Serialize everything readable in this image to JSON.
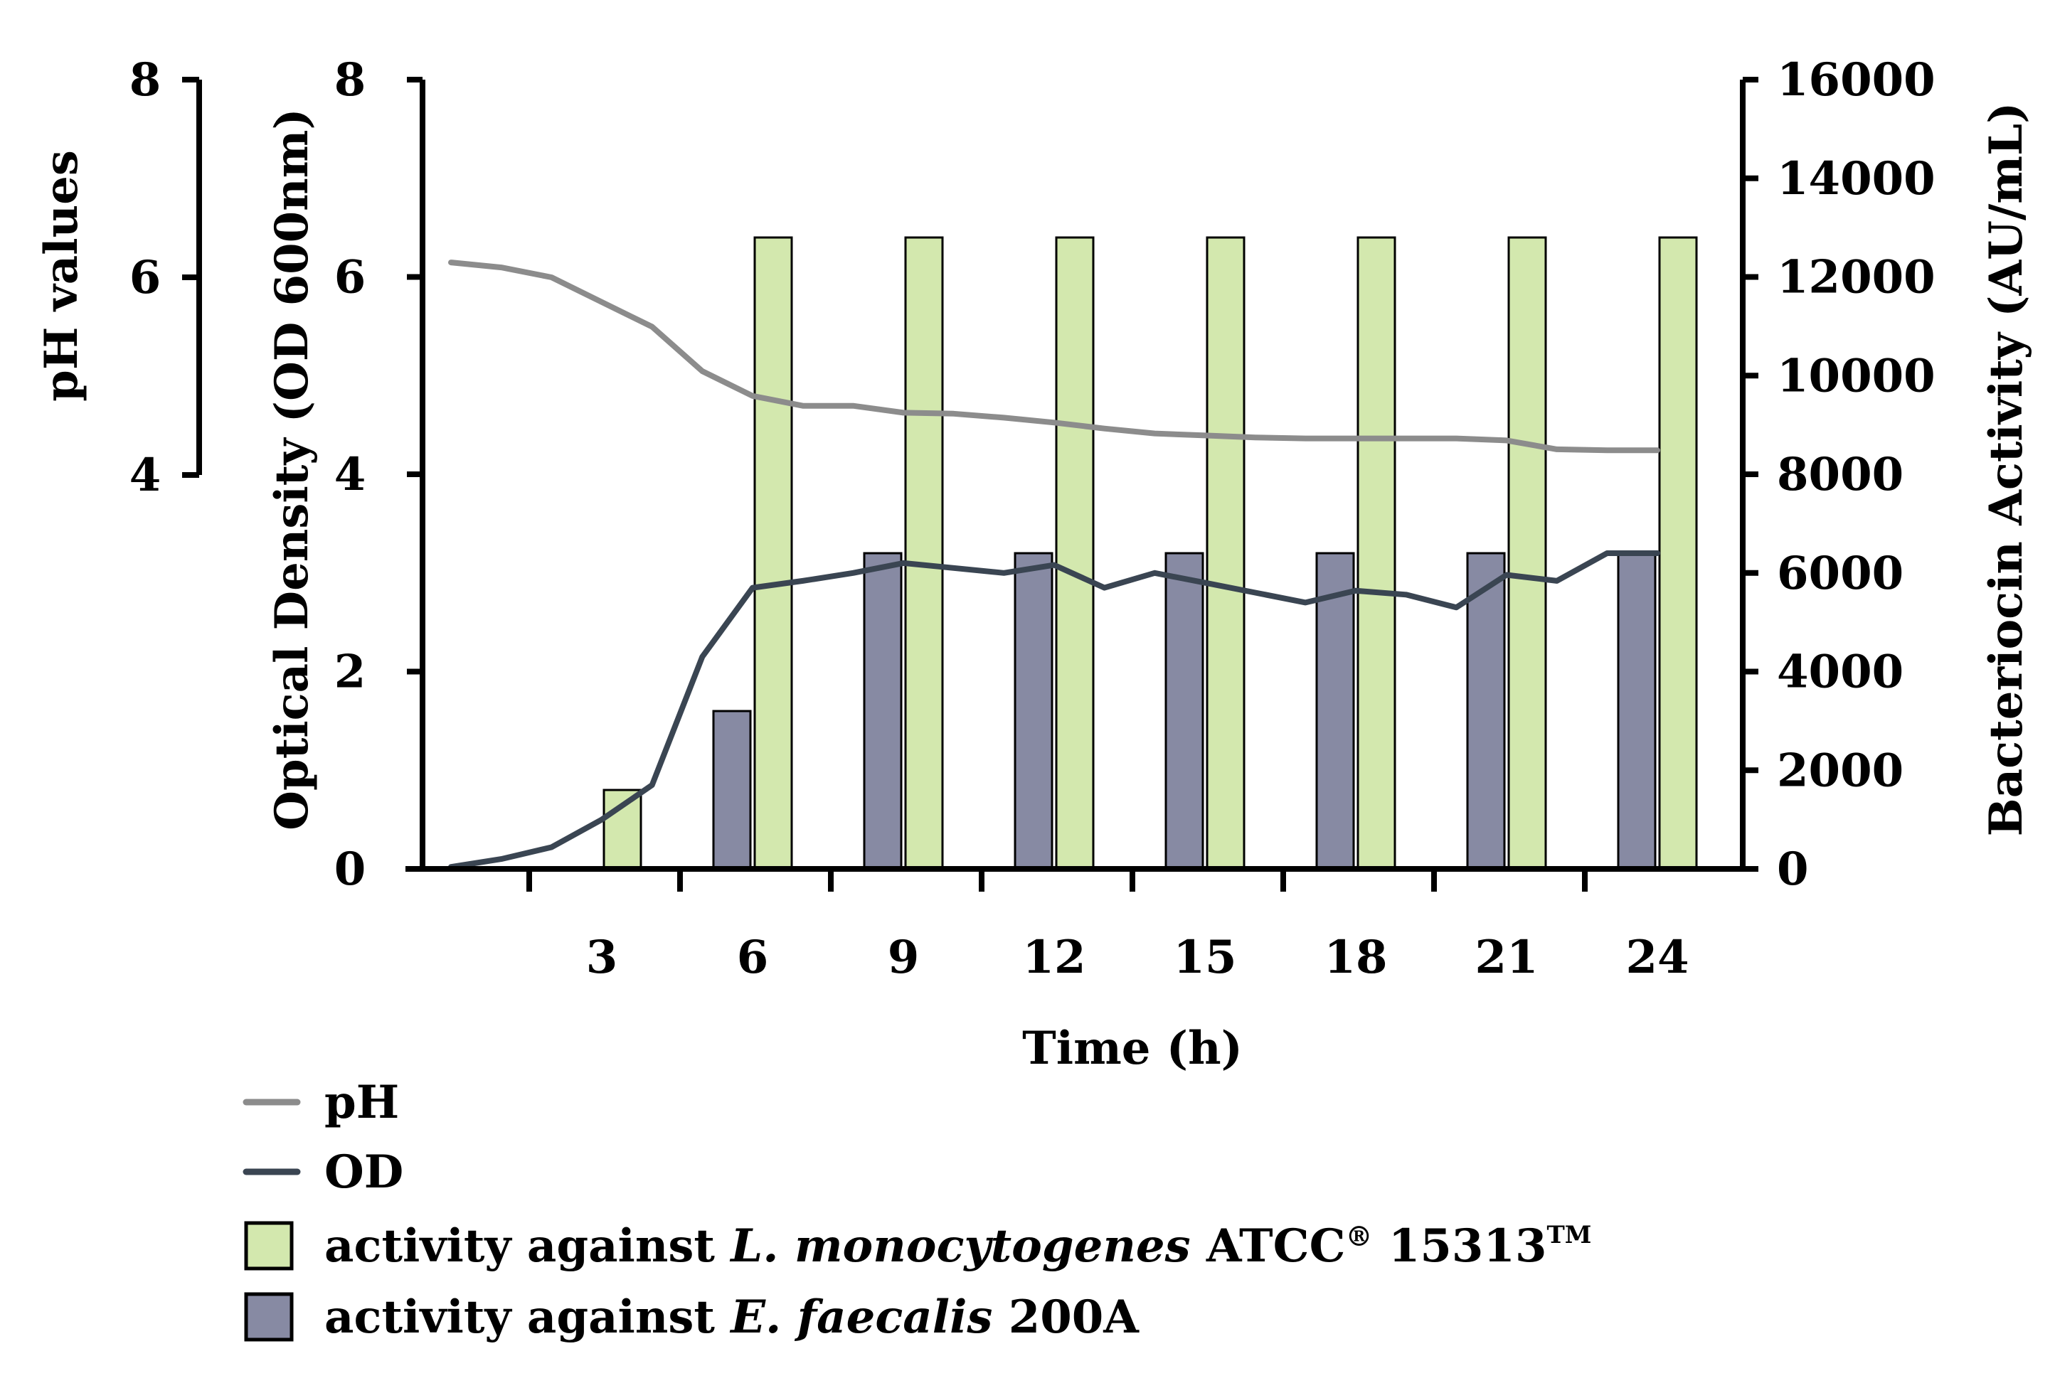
{
  "chart_data": {
    "type": "bar",
    "xlabel": "Time (h)",
    "x_ticks": [
      3,
      6,
      9,
      12,
      15,
      18,
      21,
      24
    ],
    "axes": {
      "ph": {
        "label": "pH values",
        "range": [
          4,
          8
        ],
        "ticks": [
          4,
          6,
          8
        ]
      },
      "od": {
        "label": "Optical Density (OD 600nm)",
        "range": [
          0,
          8
        ],
        "ticks": [
          0,
          2,
          4,
          6,
          8
        ]
      },
      "activity": {
        "label": "Bacteriocin Activity (AU/mL)",
        "range": [
          0,
          16000
        ],
        "ticks": [
          0,
          2000,
          4000,
          6000,
          8000,
          10000,
          12000,
          14000,
          16000
        ]
      }
    },
    "bar_series": [
      {
        "name_parts": [
          "activity against ",
          "L. monocytogenes",
          " ATCC",
          "®",
          " 15313",
          "TM"
        ],
        "color": "#d3e8ae",
        "axis": "activity",
        "x": [
          3,
          6,
          9,
          12,
          15,
          18,
          21,
          24
        ],
        "values": [
          1600,
          12800,
          12800,
          12800,
          12800,
          12800,
          12800,
          12800
        ]
      },
      {
        "name_parts": [
          "activity against ",
          "E. faecalis",
          " 200A"
        ],
        "color": "#878aa3",
        "axis": "activity",
        "x": [
          3,
          6,
          9,
          12,
          15,
          18,
          21,
          24
        ],
        "values": [
          0,
          3200,
          6400,
          6400,
          6400,
          6400,
          6400,
          6400
        ]
      }
    ],
    "line_series": [
      {
        "name": "pH",
        "color": "#8c8c8c",
        "axis": "ph",
        "x": [
          0,
          1,
          2,
          3,
          4,
          5,
          6,
          7,
          8,
          9,
          10,
          11,
          12,
          13,
          14,
          15,
          16,
          17,
          18,
          19,
          20,
          21,
          22,
          23,
          24
        ],
        "y": [
          6.15,
          6.1,
          6.0,
          5.75,
          5.5,
          5.05,
          4.8,
          4.7,
          4.7,
          4.63,
          4.62,
          4.58,
          4.53,
          4.47,
          4.42,
          4.4,
          4.38,
          4.37,
          4.37,
          4.37,
          4.37,
          4.35,
          4.26,
          4.25,
          4.25
        ]
      },
      {
        "name": "OD",
        "color": "#3a4552",
        "axis": "od",
        "x": [
          0,
          1,
          2,
          3,
          4,
          5,
          6,
          7,
          8,
          9,
          10,
          11,
          12,
          13,
          14,
          15,
          16,
          17,
          18,
          19,
          20,
          21,
          22,
          23,
          24
        ],
        "y": [
          0.02,
          0.1,
          0.22,
          0.5,
          0.85,
          2.15,
          2.85,
          2.92,
          3.0,
          3.1,
          3.05,
          3.0,
          3.08,
          2.85,
          3.0,
          2.9,
          2.8,
          2.7,
          2.82,
          2.78,
          2.65,
          2.98,
          2.92,
          3.2,
          3.2
        ]
      }
    ],
    "legend": {
      "placement": "bottom-left",
      "order": [
        "pH",
        "OD",
        "bar0",
        "bar1"
      ]
    },
    "grid": false
  }
}
